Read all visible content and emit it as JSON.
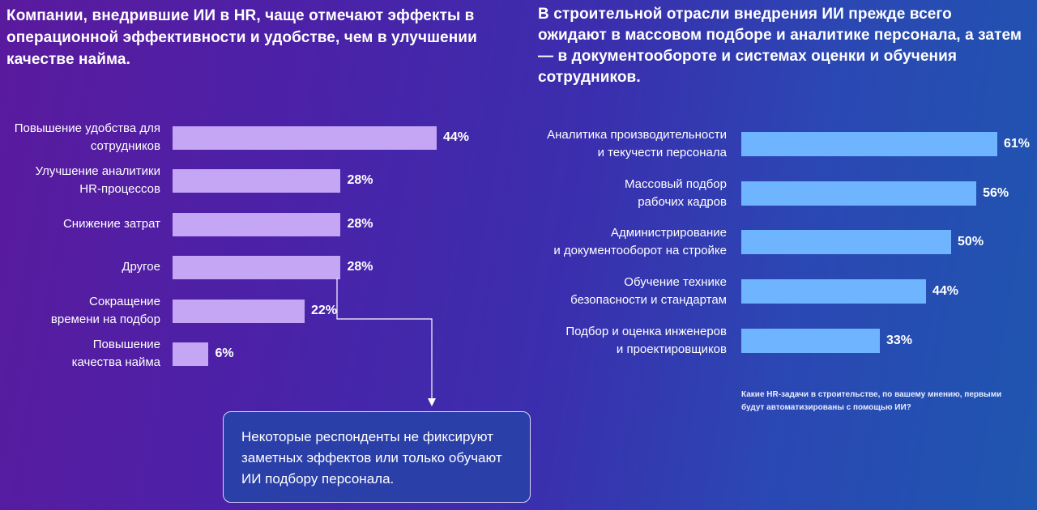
{
  "left_panel": {
    "title": "Компании, внедрившие ИИ в HR, чаще отмечают эффекты в операционной эффективности и удобстве, чем в улучшении качестве найма."
  },
  "right_panel": {
    "title": "В строительной отрасли внедрения ИИ прежде всего ожидают в массовом подборе и аналитике персонала, а затем — в документообороте и системах оценки и обучения сотрудников.",
    "question": "Какие HR-задачи в строительстве, по вашему мнению, первыми будут автоматизированы с помощью ИИ?"
  },
  "callout": {
    "text": "Некоторые респонденты не фиксируют заметных эффектов или только обучают ИИ подбору персонала."
  },
  "colors": {
    "left_bar": "#c4a6f5",
    "right_bar": "#6eb4ff",
    "connector": "#ffffff"
  },
  "chart_data": [
    {
      "type": "bar",
      "orientation": "horizontal",
      "title": "Компании, внедрившие ИИ в HR, чаще отмечают эффекты в операционной эффективности и удобстве, чем в улучшении качестве найма.",
      "categories": [
        "Повышение удобства для\nсотрудников",
        "Улучшение аналитики\nHR-процессов",
        "Снижение затрат",
        "Другое",
        "Сокращение\nвремени на подбор",
        "Повышение\nкачества найма"
      ],
      "values": [
        44,
        28,
        28,
        28,
        22,
        6
      ],
      "value_labels": [
        "44%",
        "28%",
        "28%",
        "28%",
        "22%",
        "6%"
      ],
      "unit": "%",
      "xlim": [
        0,
        44
      ]
    },
    {
      "type": "bar",
      "orientation": "horizontal",
      "title": "В строительной отрасли внедрения ИИ прежде всего ожидают в массовом подборе и аналитике персонала, а затем — в документообороте и системах оценки и обучения сотрудников.",
      "categories": [
        "Аналитика производительности\nи текучести персонала",
        "Массовый подбор\nрабочих кадров",
        "Администрирование\nи документооборот на стройке",
        "Обучение технике\nбезопасности и стандартам",
        "Подбор и оценка инженеров\nи проектировщиков"
      ],
      "values": [
        61,
        56,
        50,
        44,
        33
      ],
      "value_labels": [
        "61%",
        "56%",
        "50%",
        "44%",
        "33%"
      ],
      "unit": "%",
      "xlim": [
        0,
        61
      ]
    }
  ]
}
